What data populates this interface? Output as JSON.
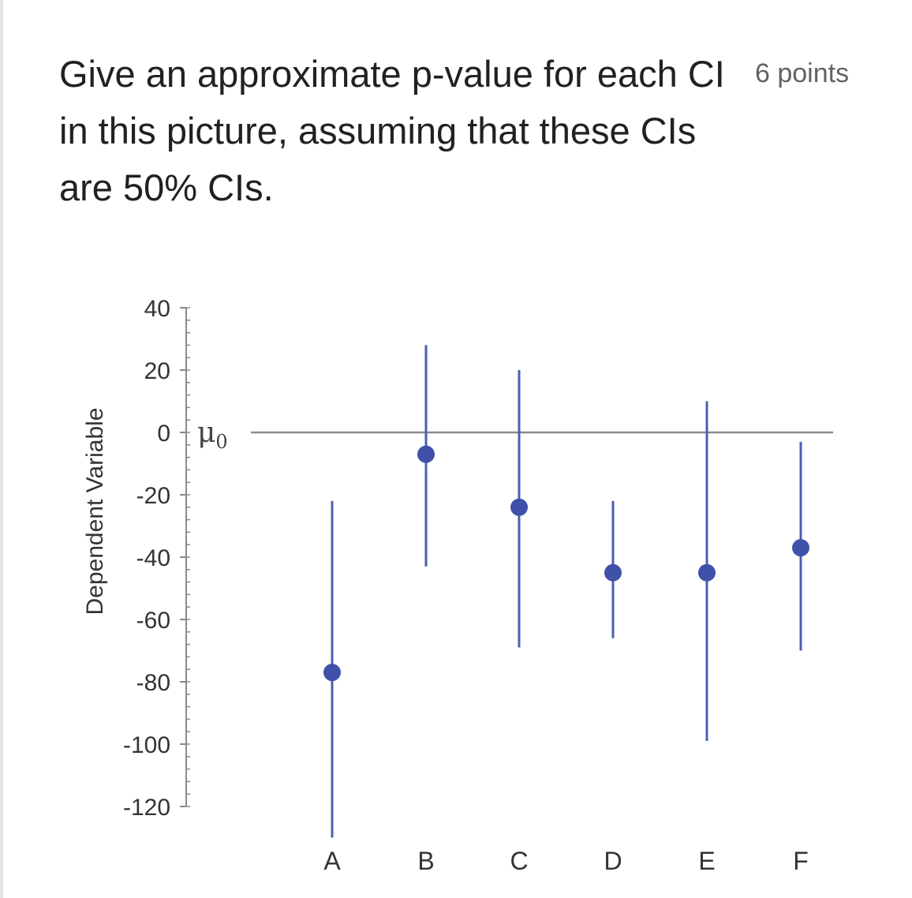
{
  "question": {
    "lines": [
      "Give an approximate p-value for each CI",
      "in this picture, assuming that these CIs",
      "are 50% CIs."
    ],
    "points": "6 points"
  },
  "chart_data": {
    "type": "scatter",
    "title": "",
    "xlabel": "",
    "ylabel": "Dependent Variable",
    "reference_line": {
      "label": "μ0",
      "y": 0
    },
    "ylim": [
      -120,
      40
    ],
    "yticks": [
      40,
      20,
      0,
      -20,
      -40,
      -60,
      -80,
      -100,
      -120
    ],
    "categories": [
      "A",
      "B",
      "C",
      "D",
      "E",
      "F"
    ],
    "series": [
      {
        "points": [
          {
            "x": "A",
            "y": -77,
            "lower": -130,
            "upper": -22
          },
          {
            "x": "B",
            "y": -7,
            "lower": -43,
            "upper": 28
          },
          {
            "x": "C",
            "y": -24,
            "lower": -69,
            "upper": 20
          },
          {
            "x": "D",
            "y": -45,
            "lower": -66,
            "upper": -22
          },
          {
            "x": "E",
            "y": -45,
            "lower": -99,
            "upper": 10
          },
          {
            "x": "F",
            "y": -37,
            "lower": -70,
            "upper": -3
          }
        ]
      }
    ],
    "colors": {
      "ci": "#4a5fb5",
      "reference": "#8a8a8a",
      "axis": "#8a8a8a"
    },
    "grid": false,
    "legend": "none"
  }
}
